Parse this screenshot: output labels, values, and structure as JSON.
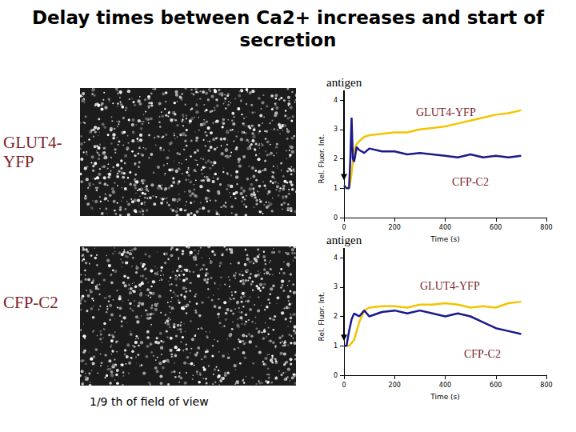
{
  "title": "Delay times between Ca2+ increases and start of secretion",
  "panels": [
    {
      "label": "GLUT4-YFP"
    },
    {
      "label": "CFP-C2"
    }
  ],
  "caption": "1/9 th of field of view",
  "chart_data": [
    {
      "type": "line",
      "annotation": "antigen",
      "x_label": "Time (s)",
      "y_label": "Rel. Fluor. Int.",
      "xlim": [
        0,
        800
      ],
      "xticks": [
        0,
        200,
        400,
        600,
        800
      ],
      "ylim": [
        0,
        4
      ],
      "yticks": [
        0,
        1,
        2,
        3,
        4
      ],
      "grid": false,
      "x": [
        0,
        10,
        20,
        25,
        30,
        35,
        40,
        50,
        60,
        80,
        100,
        150,
        200,
        250,
        300,
        350,
        400,
        450,
        500,
        550,
        600,
        650,
        700
      ],
      "series": [
        {
          "name": "GLUT4-YFP",
          "color": "#f2c500",
          "values": [
            1.1,
            1.0,
            1.0,
            1.2,
            1.5,
            1.9,
            2.3,
            2.5,
            2.6,
            2.75,
            2.8,
            2.85,
            2.9,
            2.9,
            3.0,
            3.05,
            3.1,
            3.2,
            3.3,
            3.4,
            3.5,
            3.55,
            3.65
          ]
        },
        {
          "name": "CFP-C2",
          "color": "#1a1a8c",
          "values": [
            1.1,
            1.0,
            1.0,
            2.0,
            3.4,
            2.0,
            1.9,
            2.4,
            2.3,
            2.2,
            2.35,
            2.25,
            2.25,
            2.15,
            2.2,
            2.15,
            2.1,
            2.05,
            2.15,
            2.05,
            2.1,
            2.05,
            2.1
          ]
        }
      ]
    },
    {
      "type": "line",
      "annotation": "antigen",
      "x_label": "Time (s)",
      "y_label": "Rel. Fluor. Int.",
      "xlim": [
        0,
        800
      ],
      "xticks": [
        0,
        200,
        400,
        600,
        800
      ],
      "ylim": [
        0,
        4
      ],
      "yticks": [
        0,
        1,
        2,
        3,
        4
      ],
      "grid": false,
      "x": [
        0,
        10,
        20,
        25,
        30,
        35,
        40,
        50,
        60,
        80,
        100,
        150,
        200,
        250,
        300,
        350,
        400,
        450,
        500,
        550,
        600,
        650,
        700
      ],
      "series": [
        {
          "name": "GLUT4-YFP",
          "color": "#f2c500",
          "values": [
            1.0,
            1.0,
            1.0,
            1.05,
            1.1,
            1.15,
            1.2,
            1.5,
            1.8,
            2.2,
            2.3,
            2.35,
            2.35,
            2.3,
            2.4,
            2.4,
            2.45,
            2.4,
            2.3,
            2.35,
            2.3,
            2.45,
            2.5
          ]
        },
        {
          "name": "CFP-C2",
          "color": "#1a1a8c",
          "values": [
            1.0,
            1.0,
            1.5,
            1.7,
            1.9,
            2.0,
            2.1,
            2.05,
            2.0,
            2.2,
            2.0,
            2.15,
            2.2,
            2.1,
            2.2,
            2.1,
            2.0,
            2.1,
            2.0,
            1.8,
            1.6,
            1.5,
            1.4
          ]
        }
      ]
    }
  ]
}
